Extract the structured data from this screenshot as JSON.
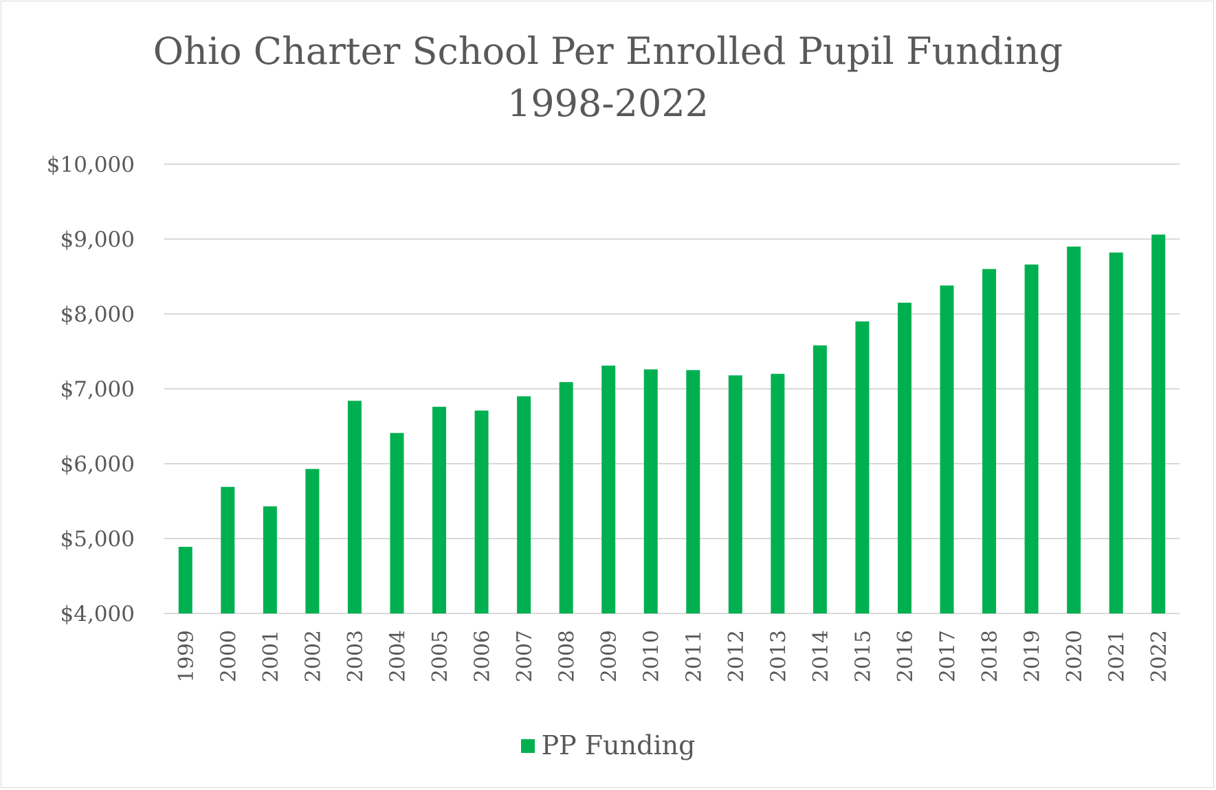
{
  "chart_data": {
    "type": "bar",
    "title_line1": "Ohio Charter School Per Enrolled Pupil Funding",
    "title_line2": "1998-2022",
    "categories": [
      "1999",
      "2000",
      "2001",
      "2002",
      "2003",
      "2004",
      "2005",
      "2006",
      "2007",
      "2008",
      "2009",
      "2010",
      "2011",
      "2012",
      "2013",
      "2014",
      "2015",
      "2016",
      "2017",
      "2018",
      "2019",
      "2020",
      "2021",
      "2022"
    ],
    "series": [
      {
        "name": "PP Funding",
        "color": "#00b050",
        "values": [
          4890,
          5690,
          5430,
          5930,
          6840,
          6410,
          6760,
          6710,
          6900,
          7090,
          7310,
          7260,
          7250,
          7180,
          7200,
          7580,
          7900,
          8150,
          8380,
          8600,
          8660,
          8900,
          8820,
          9060
        ]
      }
    ],
    "ylim": [
      4000,
      10000
    ],
    "yticks": [
      4000,
      5000,
      6000,
      7000,
      8000,
      9000,
      10000
    ],
    "ytick_labels": [
      "$4,000",
      "$5,000",
      "$6,000",
      "$7,000",
      "$8,000",
      "$9,000",
      "$10,000"
    ],
    "grid": true,
    "legend_position": "bottom",
    "colors": {
      "gridline": "#d9d9d9",
      "text": "#595959"
    }
  }
}
